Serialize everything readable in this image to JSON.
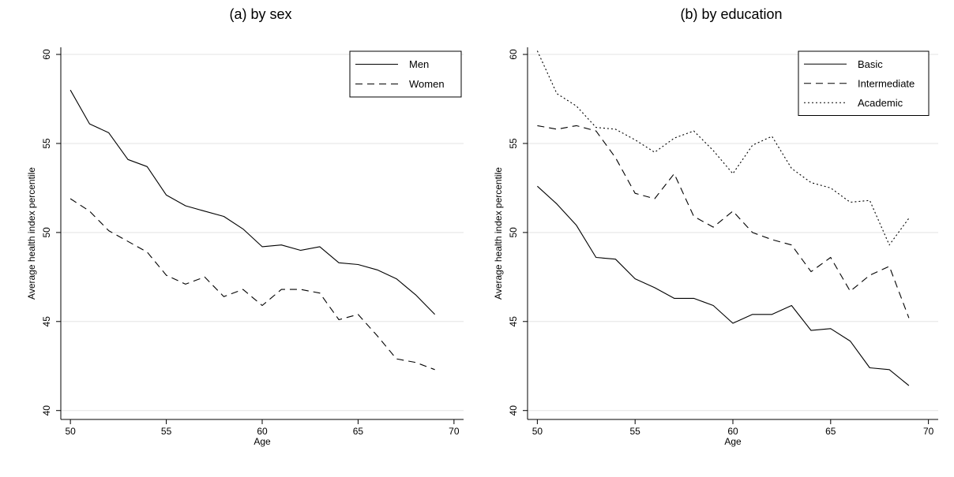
{
  "chart_data": [
    {
      "type": "line",
      "title": "(a) by sex",
      "xlabel": "Age",
      "ylabel": "Average health index percentile",
      "xlim": [
        49.5,
        70.5
      ],
      "ylim": [
        39.5,
        60.4
      ],
      "xticks": [
        50,
        55,
        60,
        65,
        70
      ],
      "yticks": [
        40,
        45,
        50,
        55,
        60
      ],
      "grid": true,
      "legend_position": "top-right",
      "x": [
        50,
        51,
        52,
        53,
        54,
        55,
        56,
        57,
        58,
        59,
        60,
        61,
        62,
        63,
        64,
        65,
        66,
        67,
        68,
        69
      ],
      "series": [
        {
          "name": "Men",
          "style": "solid",
          "values": [
            58.0,
            56.1,
            55.6,
            54.1,
            53.7,
            52.1,
            51.5,
            51.2,
            50.9,
            50.2,
            49.2,
            49.3,
            49.0,
            49.2,
            48.3,
            48.2,
            47.9,
            47.4,
            46.5,
            45.4
          ]
        },
        {
          "name": "Women",
          "style": "dashed",
          "values": [
            51.9,
            51.2,
            50.1,
            49.5,
            48.9,
            47.6,
            47.1,
            47.5,
            46.4,
            46.8,
            45.9,
            46.8,
            46.8,
            46.6,
            45.1,
            45.4,
            44.2,
            42.9,
            42.7,
            42.3
          ]
        }
      ]
    },
    {
      "type": "line",
      "title": "(b) by education",
      "xlabel": "Age",
      "ylabel": "Average health index percentile",
      "xlim": [
        49.5,
        70.5
      ],
      "ylim": [
        39.5,
        60.4
      ],
      "xticks": [
        50,
        55,
        60,
        65,
        70
      ],
      "yticks": [
        40,
        45,
        50,
        55,
        60
      ],
      "grid": true,
      "legend_position": "top-right",
      "x": [
        50,
        51,
        52,
        53,
        54,
        55,
        56,
        57,
        58,
        59,
        60,
        61,
        62,
        63,
        64,
        65,
        66,
        67,
        68,
        69
      ],
      "series": [
        {
          "name": "Basic",
          "style": "solid",
          "values": [
            52.6,
            51.6,
            50.4,
            48.6,
            48.5,
            47.4,
            46.9,
            46.3,
            46.3,
            45.9,
            44.9,
            45.4,
            45.4,
            45.9,
            44.5,
            44.6,
            43.9,
            42.4,
            42.3,
            41.4
          ]
        },
        {
          "name": "Intermediate",
          "style": "dashed",
          "values": [
            56.0,
            55.8,
            56.0,
            55.7,
            54.2,
            52.2,
            51.9,
            53.3,
            50.9,
            50.3,
            51.2,
            50.0,
            49.6,
            49.3,
            47.8,
            48.6,
            46.7,
            47.6,
            48.1,
            45.2
          ]
        },
        {
          "name": "Academic",
          "style": "dotted",
          "values": [
            60.2,
            57.8,
            57.1,
            55.9,
            55.8,
            55.2,
            54.5,
            55.3,
            55.7,
            54.6,
            53.3,
            54.9,
            55.4,
            53.6,
            52.8,
            52.5,
            51.7,
            51.8,
            49.3,
            50.8
          ]
        }
      ]
    }
  ]
}
